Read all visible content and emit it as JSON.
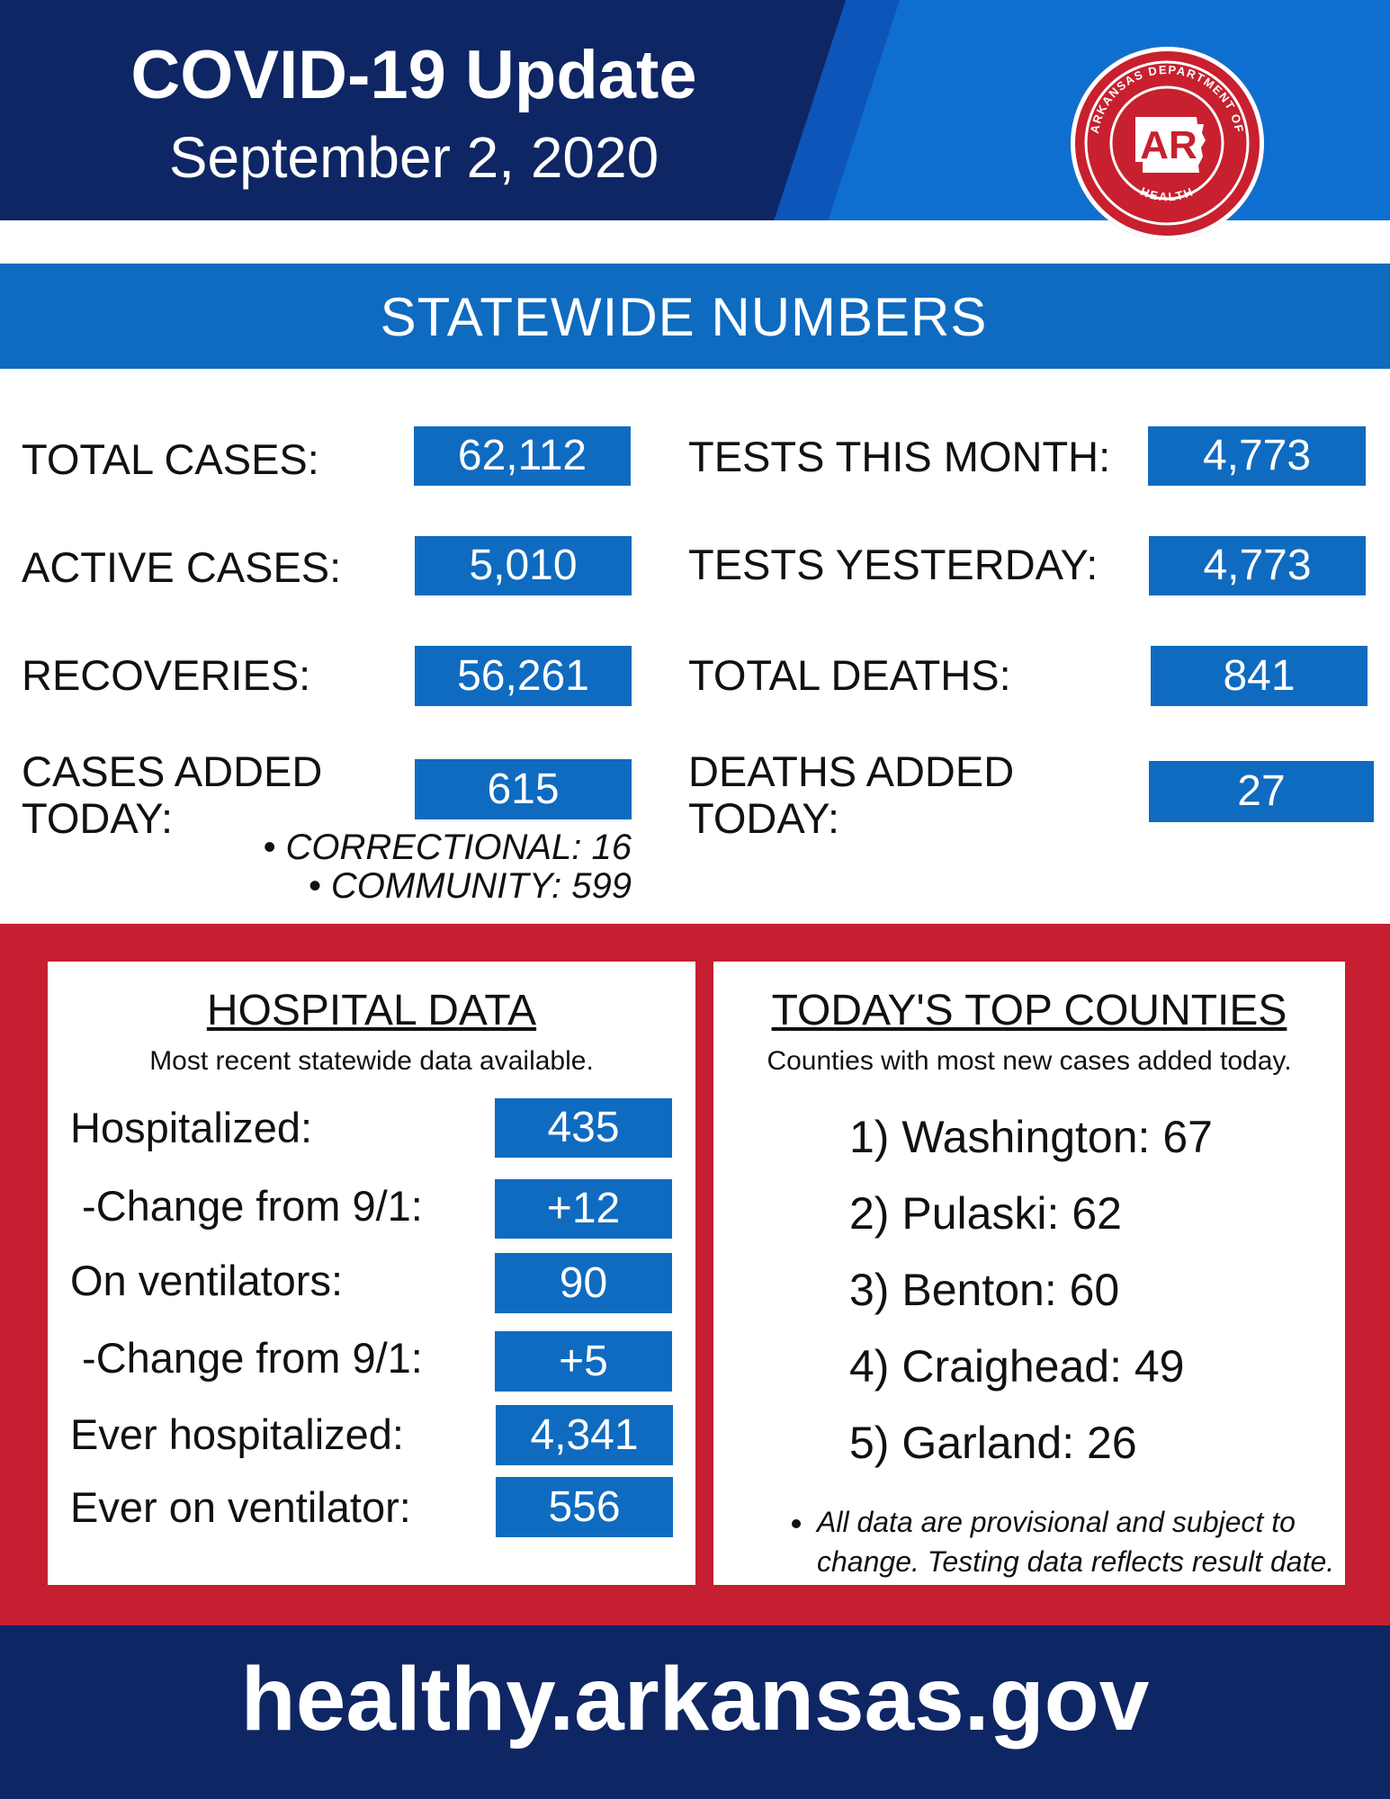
{
  "header": {
    "title": "COVID-19 Update",
    "date": "September 2, 2020",
    "logo": {
      "ring_text_top": "ARKANSAS DEPARTMENT OF",
      "ring_text_bottom": "HEALTH",
      "monogram": "AR",
      "color": "#c8202f"
    }
  },
  "statewide": {
    "title": "STATEWIDE NUMBERS",
    "left": [
      {
        "label": "TOTAL CASES:",
        "value": "62,112"
      },
      {
        "label": "ACTIVE CASES:",
        "value": "5,010"
      },
      {
        "label": "RECOVERIES:",
        "value": "56,261"
      },
      {
        "label": "CASES ADDED TODAY:",
        "value": "615"
      }
    ],
    "right": [
      {
        "label": "TESTS THIS MONTH:",
        "value": "4,773"
      },
      {
        "label": "TESTS YESTERDAY:",
        "value": "4,773"
      },
      {
        "label": "TOTAL DEATHS:",
        "value": "841"
      },
      {
        "label": "DEATHS ADDED TODAY:",
        "value": "27"
      }
    ],
    "breakdown": [
      "• CORRECTIONAL: 16",
      "• COMMUNITY: 599"
    ]
  },
  "hospital": {
    "title": "HOSPITAL DATA",
    "subtitle": "Most recent statewide data available.",
    "rows": [
      {
        "label": "Hospitalized:",
        "value": "435"
      },
      {
        "label": " -Change from 9/1:",
        "value": "+12"
      },
      {
        "label": "On ventilators:",
        "value": "90"
      },
      {
        "label": " -Change from 9/1:",
        "value": "+5"
      },
      {
        "label": "Ever hospitalized:",
        "value": "4,341"
      },
      {
        "label": "Ever on ventilator:",
        "value": "556"
      }
    ]
  },
  "counties": {
    "title": "TODAY'S TOP COUNTIES",
    "subtitle": "Counties with most new cases added today.",
    "items": [
      "1) Washington: 67",
      "2) Pulaski: 62",
      "3) Benton: 60",
      "4) Craighead: 49",
      "5) Garland: 26"
    ],
    "note": "All data are provisional and subject to change. Testing data reflects result date."
  },
  "footer": {
    "url": "healthy.arkansas.gov"
  },
  "colors": {
    "navy": "#0f2664",
    "blue": "#0f6bc0",
    "red": "#c51f31"
  }
}
